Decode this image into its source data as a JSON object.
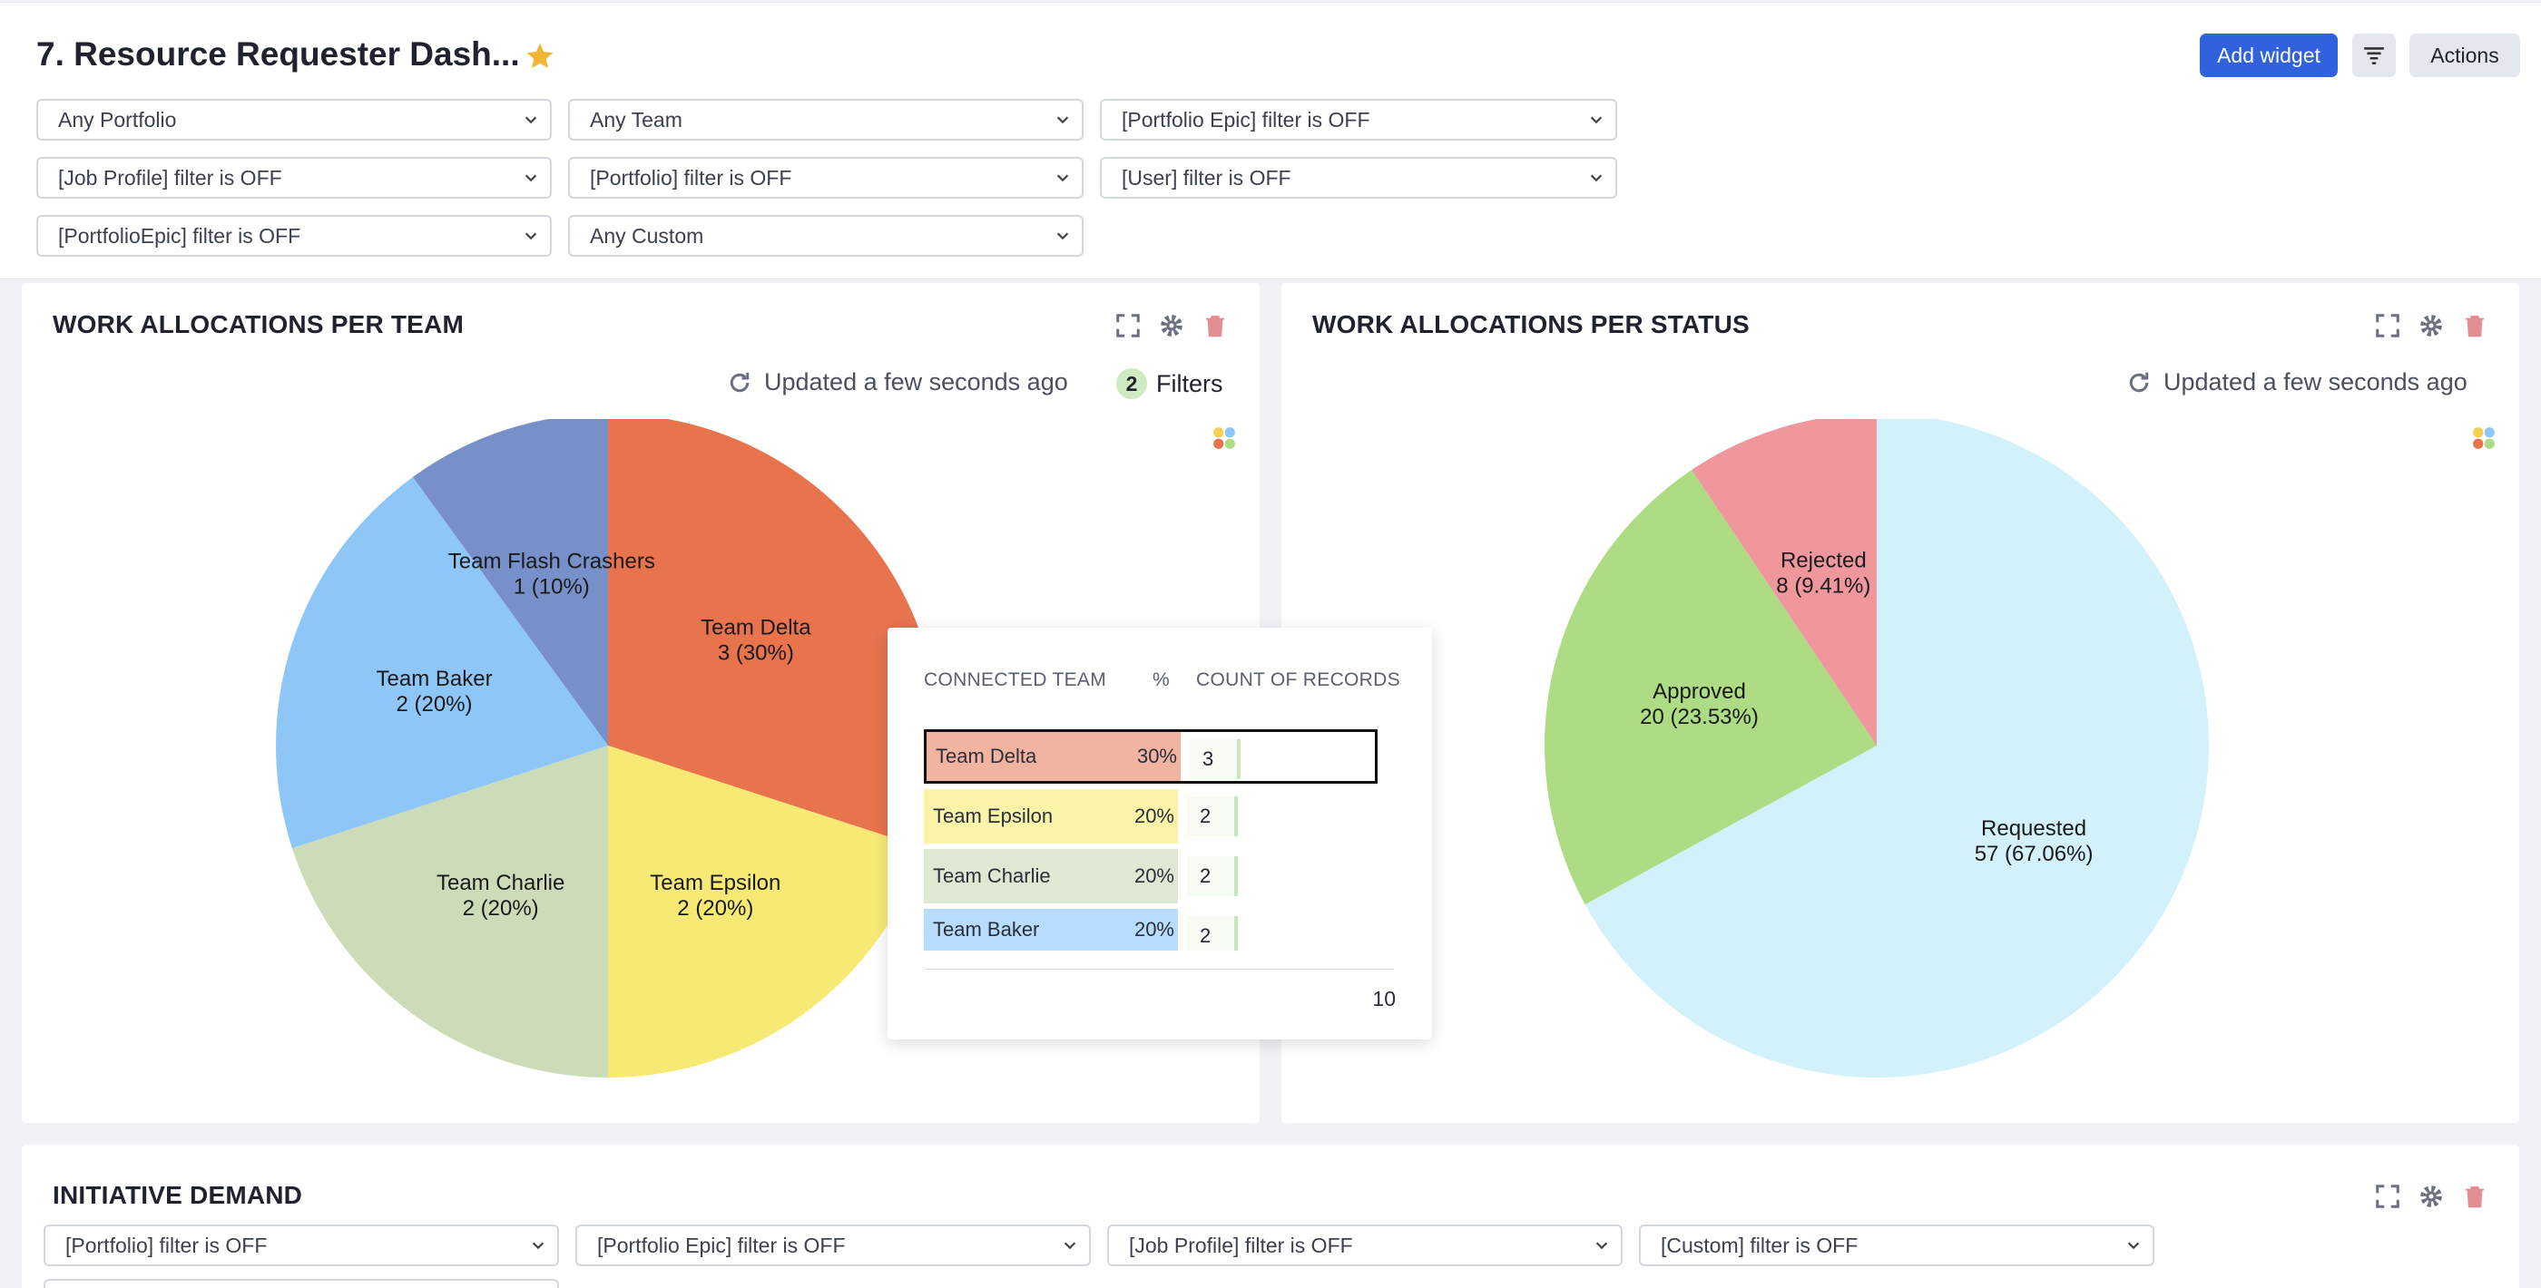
{
  "header": {
    "title": "7. Resource Requester Dash...",
    "add_widget": "Add widget",
    "actions": "Actions"
  },
  "filters_row": [
    "Any Portfolio",
    "Any Team",
    "[Portfolio Epic] filter is OFF",
    "[Job Profile] filter is OFF",
    "[Portfolio] filter is OFF",
    "[User] filter is OFF",
    "[PortfolioEpic] filter is OFF",
    "Any Custom"
  ],
  "panel_team": {
    "title": "WORK ALLOCATIONS PER TEAM",
    "updated": "Updated a few seconds ago",
    "filters_count": "2",
    "filters_label": "Filters"
  },
  "panel_status": {
    "title": "WORK ALLOCATIONS PER STATUS",
    "updated": "Updated a few seconds ago"
  },
  "chart_data": [
    {
      "type": "pie",
      "slices": [
        {
          "label": "Team Delta",
          "value": 3,
          "text": "3 (30%)",
          "color": "#e8744e"
        },
        {
          "label": "Team Epsilon",
          "value": 2,
          "text": "2 (20%)",
          "color": "#f7ea74"
        },
        {
          "label": "Team Charlie",
          "value": 2,
          "text": "2 (20%)",
          "color": "#cddcb8"
        },
        {
          "label": "Team Baker",
          "value": 2,
          "text": "2 (20%)",
          "color": "#8fc6f8"
        },
        {
          "label": "Team Flash Crashers",
          "value": 1,
          "text": "1 (10%)",
          "color": "#7890c9"
        }
      ]
    },
    {
      "type": "pie",
      "slices": [
        {
          "label": "Requested",
          "value": 57,
          "text": "57 (67.06%)",
          "color": "#d2f1fb"
        },
        {
          "label": "Approved",
          "value": 20,
          "text": "20 (23.53%)",
          "color": "#addc84"
        },
        {
          "label": "Rejected",
          "value": 8,
          "text": "8 (9.41%)",
          "color": "#f0979e"
        }
      ]
    }
  ],
  "tooltip": {
    "col_team": "CONNECTED TEAM",
    "col_pct": "%",
    "col_count": "COUNT OF RECORDS",
    "rows": [
      {
        "team": "Team Delta",
        "pct": "30%",
        "count": "3",
        "color": "#f1b4a0"
      },
      {
        "team": "Team Epsilon",
        "pct": "20%",
        "count": "2",
        "color": "#fbf3a8"
      },
      {
        "team": "Team Charlie",
        "pct": "20%",
        "count": "2",
        "color": "#dfe8d3"
      },
      {
        "team": "Team Baker",
        "pct": "20%",
        "count": "2",
        "color": "#b8dcfb"
      }
    ],
    "total": "10"
  },
  "panel_initiative": {
    "title": "INITIATIVE DEMAND",
    "filters": [
      "[Portfolio] filter is OFF",
      "[Portfolio Epic] filter is OFF",
      "[Job Profile] filter is OFF",
      "[Custom] filter is OFF"
    ]
  }
}
